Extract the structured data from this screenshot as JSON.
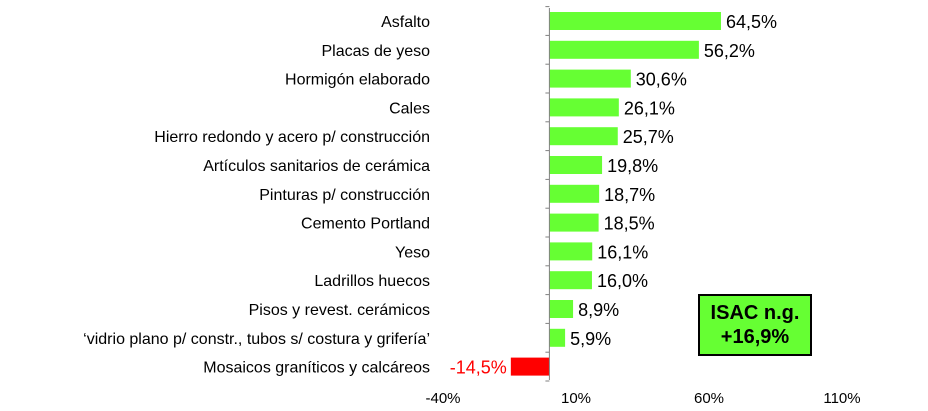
{
  "chart_data": {
    "type": "bar",
    "orientation": "horizontal",
    "categories": [
      "Asfalto",
      "Placas de yeso",
      "Hormigón elaborado",
      "Cales",
      "Hierro redondo y acero p/ construcción",
      "Artículos sanitarios de cerámica",
      "Pinturas p/ construcción",
      "Cemento Portland",
      "Yeso",
      "Ladrillos huecos",
      "Pisos y revest. cerámicos",
      "‘vidrio plano p/ constr., tubos s/ costura y grifería’",
      "Mosaicos graníticos y calcáreos"
    ],
    "values": [
      64.5,
      56.2,
      30.6,
      26.1,
      25.7,
      19.8,
      18.7,
      18.5,
      16.1,
      16.0,
      8.9,
      5.9,
      -14.5
    ],
    "value_labels": [
      "64,5%",
      "56,2%",
      "30,6%",
      "26,1%",
      "25,7%",
      "19,8%",
      "18,7%",
      "18,5%",
      "16,1%",
      "16,0%",
      "8,9%",
      "5,9%",
      "-14,5%"
    ],
    "xlim": [
      -40,
      110
    ],
    "xticks": [
      -40,
      10,
      60,
      110
    ],
    "xtick_labels": [
      "-40%",
      "10%",
      "60%",
      "110%"
    ],
    "title": "",
    "xlabel": "",
    "ylabel": "",
    "grid": false,
    "legend": "none",
    "colors": {
      "positive": "#66ff33",
      "negative": "#ff0000",
      "negative_label": "#ff0000",
      "axis": "#808080"
    }
  },
  "annotation": {
    "line1": "ISAC n.g.",
    "line2": "+16,9%",
    "background": "#66ff33",
    "border": "#000000"
  }
}
